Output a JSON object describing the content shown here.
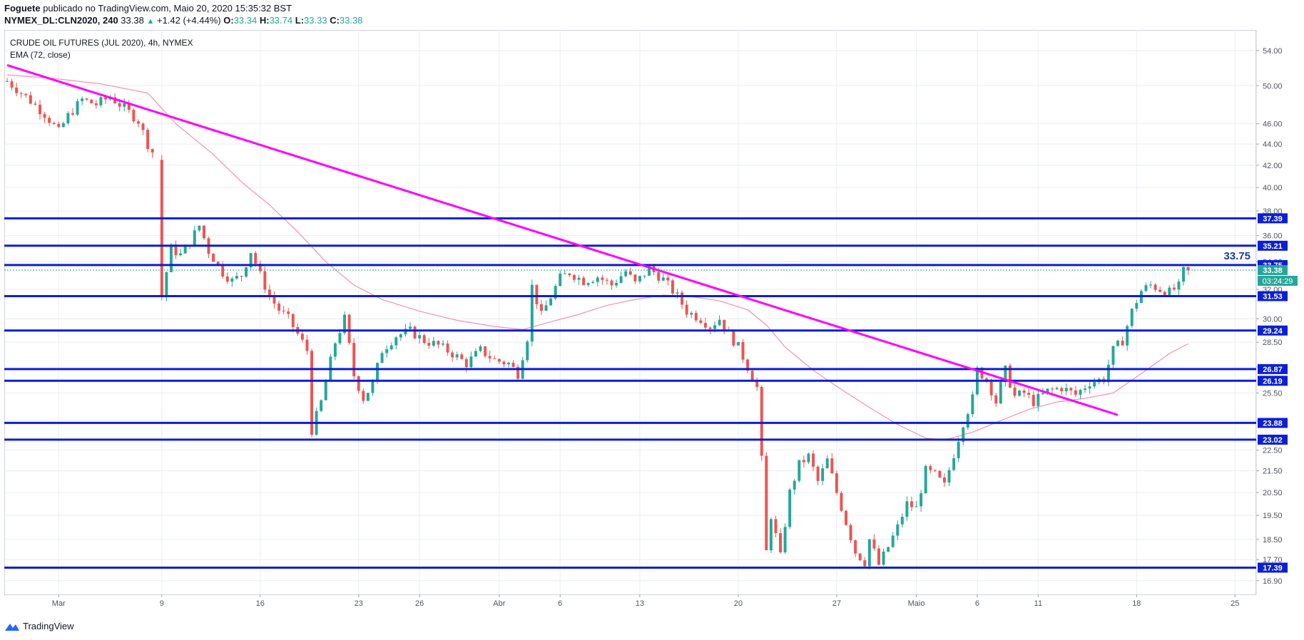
{
  "header": {
    "author": "Foguete",
    "published_text": "publicado no TradingView.com, Maio 20, 2020 15:35:32 BST",
    "symbol": "NYMEX_DL:CLN2020, 240",
    "last": "33.38",
    "change": "+1.42 (+4.44%)",
    "open_label": "O:",
    "open": "33.34",
    "high_label": "H:",
    "high": "33.74",
    "low_label": "L:",
    "low": "33.33",
    "close_label": "C:",
    "close": "33.38"
  },
  "legend": {
    "title": "CRUDE OIL FUTURES (JUL 2020), 4h, NYMEX",
    "indicator": "EMA (72, close)"
  },
  "footer": {
    "brand": "TradingView"
  },
  "colors": {
    "up": "#26a69a",
    "down": "#ef5350",
    "hline": "#0b1fd4",
    "trendline": "#ff00ff",
    "ema": "#f48fb1",
    "grid": "#e9edf3",
    "last_tag": "#26a69a"
  },
  "chart_data": {
    "type": "candlestick",
    "yscale": "log",
    "ylim": [
      16.4,
      56.5
    ],
    "y_ticks": [
      "54.00",
      "50.00",
      "46.00",
      "44.00",
      "42.00",
      "40.00",
      "38.00",
      "36.00",
      "34.00",
      "32.00",
      "30.00",
      "28.50",
      "27.00",
      "25.50",
      "24.00",
      "22.50",
      "21.50",
      "20.50",
      "19.50",
      "18.50",
      "17.70",
      "16.90"
    ],
    "x_ticks": [
      {
        "label": "Mar",
        "bar": 11
      },
      {
        "label": "9",
        "bar": 33
      },
      {
        "label": "16",
        "bar": 54
      },
      {
        "label": "23",
        "bar": 75
      },
      {
        "label": "26",
        "bar": 88
      },
      {
        "label": "Abr",
        "bar": 105
      },
      {
        "label": "6",
        "bar": 118
      },
      {
        "label": "13",
        "bar": 135
      },
      {
        "label": "20",
        "bar": 156
      },
      {
        "label": "27",
        "bar": 177
      },
      {
        "label": "Maio",
        "bar": 194
      },
      {
        "label": "6",
        "bar": 207
      },
      {
        "label": "11",
        "bar": 220
      },
      {
        "label": "18",
        "bar": 241
      },
      {
        "label": "25",
        "bar": 262
      }
    ],
    "bars_total": 265,
    "horizontal_levels": [
      "37.39",
      "35.21",
      "33.75",
      "31.53",
      "29.24",
      "26.87",
      "26.19",
      "23.88",
      "23.02",
      "17.39"
    ],
    "price_annotation": "33.75",
    "last_price": "33.38",
    "countdown": "03:24:29",
    "trendlines": [
      {
        "from": {
          "bar": 0,
          "price": 52.3
        },
        "to": {
          "bar": 237,
          "price": 24.3
        }
      }
    ],
    "ema": [
      [
        0,
        51.2
      ],
      [
        10,
        50.8
      ],
      [
        20,
        50.2
      ],
      [
        30,
        49.2
      ],
      [
        36,
        46.0
      ],
      [
        44,
        43.0
      ],
      [
        50,
        40.5
      ],
      [
        56,
        38.5
      ],
      [
        62,
        36.3
      ],
      [
        68,
        34.0
      ],
      [
        74,
        32.3
      ],
      [
        80,
        31.3
      ],
      [
        88,
        30.5
      ],
      [
        96,
        29.9
      ],
      [
        104,
        29.5
      ],
      [
        110,
        29.3
      ],
      [
        116,
        29.8
      ],
      [
        122,
        30.3
      ],
      [
        128,
        30.9
      ],
      [
        134,
        31.3
      ],
      [
        140,
        31.6
      ],
      [
        146,
        31.5
      ],
      [
        152,
        31.2
      ],
      [
        158,
        30.6
      ],
      [
        162,
        29.6
      ],
      [
        166,
        28.2
      ],
      [
        172,
        26.8
      ],
      [
        178,
        25.7
      ],
      [
        184,
        24.7
      ],
      [
        190,
        23.8
      ],
      [
        196,
        23.1
      ],
      [
        200,
        23.0
      ],
      [
        206,
        23.4
      ],
      [
        212,
        24.0
      ],
      [
        218,
        24.6
      ],
      [
        224,
        25.0
      ],
      [
        230,
        25.2
      ],
      [
        236,
        25.5
      ],
      [
        242,
        26.6
      ],
      [
        248,
        27.8
      ],
      [
        252,
        28.4
      ]
    ],
    "ohlc_path": [
      [
        0,
        50.5
      ],
      [
        4,
        48.8
      ],
      [
        8,
        47.0
      ],
      [
        11,
        45.2
      ],
      [
        13,
        46.8
      ],
      [
        16,
        48.5
      ],
      [
        19,
        48.0
      ],
      [
        22,
        48.8
      ],
      [
        25,
        47.6
      ],
      [
        28,
        46.3
      ],
      [
        30,
        44.0
      ],
      [
        32,
        42.5
      ],
      [
        33,
        31.5
      ],
      [
        35,
        35.0
      ],
      [
        37,
        34.5
      ],
      [
        39,
        35.5
      ],
      [
        41,
        36.8
      ],
      [
        43,
        34.8
      ],
      [
        46,
        33.2
      ],
      [
        48,
        32.6
      ],
      [
        50,
        33.0
      ],
      [
        52,
        34.8
      ],
      [
        54,
        33.0
      ],
      [
        56,
        31.5
      ],
      [
        58,
        30.6
      ],
      [
        60,
        30.0
      ],
      [
        62,
        29.0
      ],
      [
        64,
        28.0
      ],
      [
        65,
        23.5
      ],
      [
        67,
        25.0
      ],
      [
        70,
        28.5
      ],
      [
        72,
        30.0
      ],
      [
        74,
        26.5
      ],
      [
        76,
        25.2
      ],
      [
        78,
        26.0
      ],
      [
        80,
        28.0
      ],
      [
        83,
        28.9
      ],
      [
        86,
        29.2
      ],
      [
        89,
        28.6
      ],
      [
        92,
        28.3
      ],
      [
        95,
        27.8
      ],
      [
        98,
        27.2
      ],
      [
        101,
        28.0
      ],
      [
        104,
        27.4
      ],
      [
        107,
        27.2
      ],
      [
        109,
        26.6
      ],
      [
        111,
        28.8
      ],
      [
        112,
        32.2
      ],
      [
        114,
        30.2
      ],
      [
        116,
        31.5
      ],
      [
        118,
        32.8
      ],
      [
        120,
        33.2
      ],
      [
        123,
        32.6
      ],
      [
        126,
        32.9
      ],
      [
        129,
        32.3
      ],
      [
        132,
        33.3
      ],
      [
        134,
        32.4
      ],
      [
        137,
        33.5
      ],
      [
        140,
        32.7
      ],
      [
        143,
        31.5
      ],
      [
        145,
        30.5
      ],
      [
        148,
        30.0
      ],
      [
        150,
        29.5
      ],
      [
        152,
        30.0
      ],
      [
        154,
        29.0
      ],
      [
        156,
        28.2
      ],
      [
        158,
        27.0
      ],
      [
        160,
        25.8
      ],
      [
        161,
        22.0
      ],
      [
        162,
        18.0
      ],
      [
        163,
        19.5
      ],
      [
        165,
        17.8
      ],
      [
        167,
        20.5
      ],
      [
        169,
        21.8
      ],
      [
        171,
        22.2
      ],
      [
        173,
        21.0
      ],
      [
        175,
        22.0
      ],
      [
        177,
        20.5
      ],
      [
        179,
        19.2
      ],
      [
        181,
        18.0
      ],
      [
        183,
        17.6
      ],
      [
        184,
        18.5
      ],
      [
        186,
        17.5
      ],
      [
        188,
        18.2
      ],
      [
        190,
        19.0
      ],
      [
        192,
        20.0
      ],
      [
        194,
        19.8
      ],
      [
        196,
        21.5
      ],
      [
        198,
        21.3
      ],
      [
        200,
        20.8
      ],
      [
        202,
        22.3
      ],
      [
        204,
        23.9
      ],
      [
        206,
        25.2
      ],
      [
        207,
        26.8
      ],
      [
        209,
        26.3
      ],
      [
        211,
        25.0
      ],
      [
        213,
        26.8
      ],
      [
        215,
        25.3
      ],
      [
        217,
        25.5
      ],
      [
        219,
        25.0
      ],
      [
        222,
        25.6
      ],
      [
        225,
        25.8
      ],
      [
        228,
        25.4
      ],
      [
        231,
        26.1
      ],
      [
        234,
        26.3
      ],
      [
        236,
        28.0
      ],
      [
        238,
        28.6
      ],
      [
        240,
        30.5
      ],
      [
        242,
        31.9
      ],
      [
        244,
        32.3
      ],
      [
        246,
        32.0
      ],
      [
        248,
        31.8
      ],
      [
        250,
        32.2
      ],
      [
        251,
        33.3
      ],
      [
        252,
        33.38
      ]
    ]
  }
}
